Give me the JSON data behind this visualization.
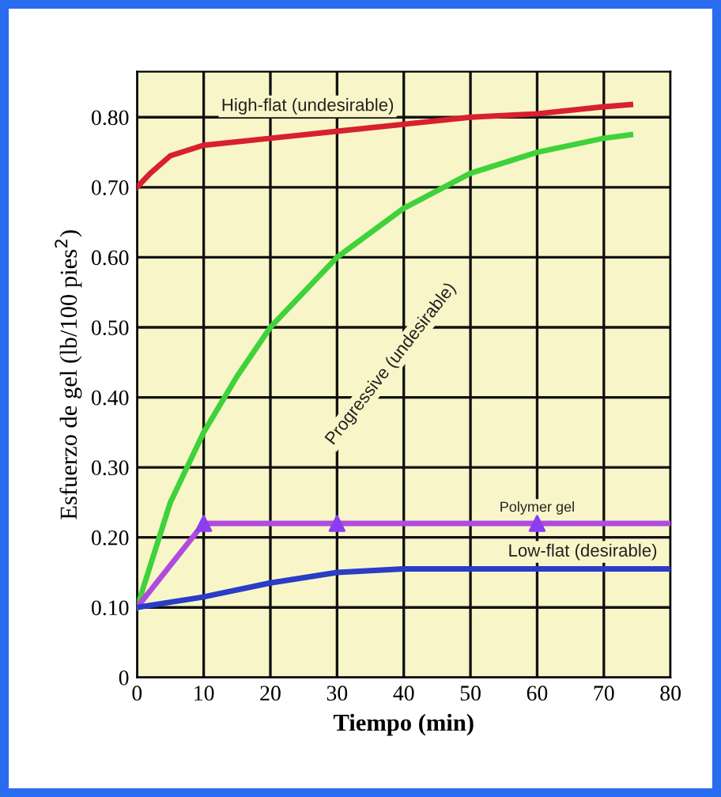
{
  "chart_data": {
    "type": "line",
    "xlabel": "Tiempo (min)",
    "ylabel": "Esfuerzo de gel (lb/100 pies$^{2}$)",
    "xlim": [
      0,
      80
    ],
    "ylim": [
      0,
      0.865
    ],
    "xticks": [
      0,
      10,
      20,
      30,
      40,
      50,
      60,
      70,
      80
    ],
    "yticks": [
      0,
      {
        "value": 0.1,
        "label": "0.10"
      },
      {
        "value": 0.2,
        "label": "0.20"
      },
      {
        "value": 0.3,
        "label": "0.30"
      },
      {
        "value": 0.4,
        "label": "0.40"
      },
      {
        "value": 0.5,
        "label": "0.50"
      },
      {
        "value": 0.6,
        "label": "0.60"
      },
      {
        "value": 0.7,
        "label": "0.70"
      },
      {
        "value": 0.8,
        "label": "0.80"
      }
    ],
    "grid": true,
    "legend": false,
    "series": [
      {
        "name": "High-flat (undesirable)",
        "color": "#d8202e",
        "x": [
          0,
          2,
          5,
          10,
          20,
          30,
          40,
          50,
          60,
          70,
          74
        ],
        "values": [
          0.7,
          0.72,
          0.745,
          0.76,
          0.77,
          0.78,
          0.79,
          0.8,
          0.805,
          0.815,
          0.818
        ]
      },
      {
        "name": "Progressive (undesirable)",
        "color": "#3fd23a",
        "x": [
          0,
          5,
          10,
          15,
          20,
          30,
          40,
          50,
          60,
          70,
          74
        ],
        "values": [
          0.1,
          0.25,
          0.35,
          0.43,
          0.5,
          0.6,
          0.67,
          0.72,
          0.75,
          0.77,
          0.775
        ]
      },
      {
        "name": "Polymer gel",
        "color": "#b04ae0",
        "x": [
          0,
          10,
          30,
          60,
          80
        ],
        "values": [
          0.1,
          0.22,
          0.22,
          0.22,
          0.22
        ]
      },
      {
        "type": "scatter",
        "marker": "triangle",
        "color": "#8a3ef0",
        "x": [
          10,
          30,
          60
        ],
        "values": [
          0.22,
          0.22,
          0.22
        ]
      },
      {
        "name": "Low-flat (desirable)",
        "color": "#2a3cc8",
        "x": [
          0,
          10,
          20,
          30,
          40,
          80
        ],
        "values": [
          0.1,
          0.115,
          0.135,
          0.15,
          0.155,
          0.155
        ]
      }
    ]
  }
}
